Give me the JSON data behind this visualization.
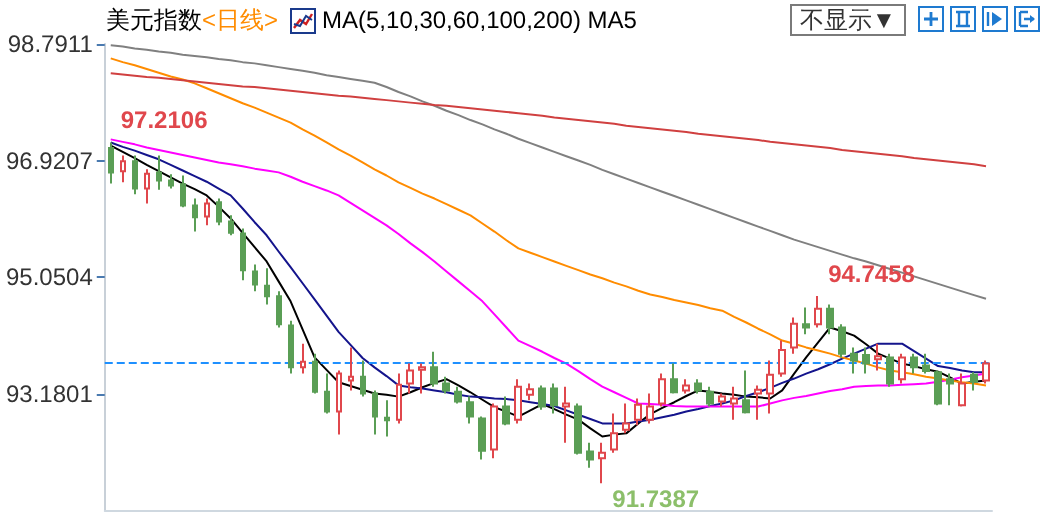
{
  "chart_data": {
    "type": "candlestick",
    "title": "美元指数",
    "subtitle": "<日线>",
    "annotations": [
      "MA(5,10,30,60,100,200) MA5",
      "不显示▼",
      "97.2106",
      "94.7458",
      "91.7387"
    ],
    "categories": [
      null,
      null,
      null,
      null,
      null,
      null,
      null,
      null,
      null,
      null,
      null,
      null,
      null,
      null,
      null,
      null,
      null,
      null,
      null,
      null,
      null,
      null,
      null,
      null,
      null,
      null,
      null,
      null,
      null,
      null,
      null,
      null,
      null,
      null,
      null,
      null,
      null,
      null,
      null,
      null,
      null,
      null,
      null,
      null,
      null,
      null,
      null,
      null,
      null,
      null,
      null,
      null,
      null,
      null,
      null,
      null,
      null,
      null,
      null,
      null,
      null,
      null,
      null,
      null,
      null,
      null,
      null,
      null,
      null,
      null,
      null,
      null,
      null,
      null
    ],
    "ylim": [
      91.3098,
      98.7911
    ],
    "yticks": [
      93.1801,
      95.0504,
      96.9207,
      98.7911
    ],
    "ref_lines": [
      {
        "axis": "y",
        "value": 93.68,
        "color": "#1e90ff",
        "line_style": "dashed"
      }
    ],
    "series": [
      {
        "colors": [
          "#5a9e55",
          "#e0474c",
          "#5a9e55",
          "#e0474c",
          "#5a9e55",
          "#5a9e55",
          "#5a9e55",
          "#5a9e55",
          "#e0474c",
          "#5a9e55",
          "#5a9e55",
          "#5a9e55",
          "#5a9e55",
          "#5a9e55",
          "#5a9e55",
          "#5a9e55",
          "#e0474c",
          "#5a9e55",
          "#5a9e55",
          "#e0474c",
          "#e0474c",
          "#5a9e55",
          "#5a9e55",
          "#5a9e55",
          "#e0474c",
          "#e0474c",
          "#e0474c",
          "#5a9e55",
          "#5a9e55",
          "#5a9e55",
          "#5a9e55",
          "#5a9e55",
          "#e0474c",
          "#5a9e55",
          "#e0474c",
          "#e0474c",
          "#5a9e55",
          "#5a9e55",
          "#e0474c",
          "#5a9e55",
          "#5a9e55",
          "#e0474c",
          "#e0474c",
          "#e0474c",
          "#e0474c",
          "#e0474c",
          "#e0474c",
          "#5a9e55",
          "#e0474c",
          "#5a9e55",
          "#5a9e55",
          "#e0474c",
          "#e0474c",
          "#5a9e55",
          "#e0474c",
          "#e0474c",
          "#e0474c",
          "#e0474c",
          "#5a9e55",
          "#e0474c",
          "#5a9e55",
          "#5a9e55",
          "#5a9e55",
          "#5a9e55",
          "#e0474c",
          "#5a9e55",
          "#e0474c",
          "#5a9e55",
          "#5a9e55",
          "#5a9e55",
          "#5a9e55",
          "#e0474c",
          "#5a9e55",
          "#e0474c"
        ],
        "ohlc": [
          [
            97.12,
            97.2106,
            96.55,
            96.73
          ],
          [
            96.75,
            97.0,
            96.57,
            96.91
          ],
          [
            96.91,
            97.0,
            96.38,
            96.47
          ],
          [
            96.47,
            96.78,
            96.23,
            96.71
          ],
          [
            96.73,
            97.0,
            96.45,
            96.6
          ],
          [
            96.6,
            96.7,
            96.47,
            96.52
          ],
          [
            96.54,
            96.68,
            96.17,
            96.2
          ],
          [
            96.2,
            96.31,
            95.78,
            96.01
          ],
          [
            96.02,
            96.31,
            95.88,
            96.23
          ],
          [
            96.25,
            96.31,
            95.88,
            95.94
          ],
          [
            95.94,
            96.04,
            95.72,
            95.76
          ],
          [
            95.75,
            95.83,
            95.0,
            95.16
          ],
          [
            95.14,
            95.25,
            94.82,
            94.93
          ],
          [
            94.91,
            95.19,
            94.61,
            94.74
          ],
          [
            94.74,
            94.82,
            94.24,
            94.29
          ],
          [
            94.27,
            94.35,
            93.5,
            93.6
          ],
          [
            93.6,
            93.98,
            93.5,
            93.69
          ],
          [
            93.69,
            93.82,
            93.18,
            93.21
          ],
          [
            93.21,
            93.5,
            92.86,
            92.89
          ],
          [
            92.89,
            93.55,
            92.52,
            93.5
          ],
          [
            93.39,
            93.92,
            93.23,
            93.45
          ],
          [
            93.45,
            93.71,
            93.13,
            93.18
          ],
          [
            93.18,
            93.23,
            92.52,
            92.81
          ],
          [
            92.79,
            93.07,
            92.49,
            92.75
          ],
          [
            92.76,
            93.5,
            92.7,
            93.32
          ],
          [
            93.34,
            93.66,
            93.18,
            93.55
          ],
          [
            93.56,
            93.66,
            93.18,
            93.6
          ],
          [
            93.6,
            93.85,
            93.29,
            93.34
          ],
          [
            93.34,
            93.45,
            93.18,
            93.23
          ],
          [
            93.21,
            93.29,
            93.02,
            93.05
          ],
          [
            93.04,
            93.13,
            92.7,
            92.81
          ],
          [
            92.78,
            92.81,
            92.12,
            92.26
          ],
          [
            92.28,
            93.02,
            92.14,
            92.97
          ],
          [
            92.97,
            93.13,
            92.67,
            92.7
          ],
          [
            92.76,
            93.41,
            92.7,
            93.29
          ],
          [
            93.16,
            93.34,
            93.07,
            93.25
          ],
          [
            93.26,
            93.31,
            92.92,
            92.97
          ],
          [
            93.26,
            93.34,
            92.86,
            92.99
          ],
          [
            92.97,
            93.29,
            92.39,
            93.02
          ],
          [
            92.97,
            93.02,
            92.2,
            92.23
          ],
          [
            92.25,
            92.39,
            91.99,
            92.12
          ],
          [
            92.14,
            92.39,
            91.7387,
            92.23
          ],
          [
            92.28,
            92.86,
            92.23,
            92.54
          ],
          [
            92.6,
            93.02,
            92.54,
            92.7
          ],
          [
            92.76,
            93.1,
            92.67,
            93.0
          ],
          [
            92.76,
            93.18,
            92.7,
            92.97
          ],
          [
            93.02,
            93.5,
            92.97,
            93.41
          ],
          [
            93.41,
            93.66,
            93.18,
            93.2
          ],
          [
            93.23,
            93.41,
            93.18,
            93.31
          ],
          [
            93.34,
            93.41,
            93.18,
            93.23
          ],
          [
            93.21,
            93.29,
            92.97,
            93.02
          ],
          [
            93.05,
            93.18,
            92.97,
            93.13
          ],
          [
            93.02,
            93.29,
            92.76,
            93.1
          ],
          [
            93.07,
            93.55,
            92.86,
            92.88
          ],
          [
            93.18,
            93.31,
            92.76,
            93.24
          ],
          [
            93.18,
            93.71,
            92.86,
            93.48
          ],
          [
            93.5,
            94.03,
            93.45,
            93.88
          ],
          [
            93.92,
            94.4,
            93.82,
            94.3
          ],
          [
            94.29,
            94.56,
            94.13,
            94.24
          ],
          [
            94.29,
            94.7458,
            94.24,
            94.54
          ],
          [
            94.54,
            94.61,
            94.13,
            94.24
          ],
          [
            94.24,
            94.29,
            93.76,
            93.82
          ],
          [
            93.82,
            93.92,
            93.5,
            93.71
          ],
          [
            93.8,
            93.92,
            93.5,
            93.66
          ],
          [
            93.73,
            93.98,
            93.55,
            93.78
          ],
          [
            93.76,
            93.82,
            93.29,
            93.34
          ],
          [
            93.41,
            93.82,
            93.34,
            93.76
          ],
          [
            93.76,
            93.82,
            93.5,
            93.6
          ],
          [
            93.63,
            93.82,
            93.5,
            93.54
          ],
          [
            93.52,
            93.55,
            92.99,
            93.02
          ],
          [
            93.41,
            93.5,
            92.99,
            93.34
          ],
          [
            92.99,
            93.5,
            92.97,
            93.34
          ],
          [
            93.48,
            93.52,
            93.23,
            93.37
          ],
          [
            93.39,
            93.71,
            93.34,
            93.66
          ]
        ]
      },
      {
        "type": "line",
        "color": "#000000",
        "values": [
          97.16,
          97.06,
          96.96,
          96.85,
          96.75,
          96.65,
          96.55,
          96.46,
          96.36,
          96.18,
          95.99,
          95.76,
          95.53,
          95.3,
          94.98,
          94.66,
          94.21,
          93.76,
          93.56,
          93.36,
          93.3,
          93.24,
          93.18,
          93.16,
          93.13,
          93.2,
          93.28,
          93.35,
          93.41,
          93.31,
          93.2,
          93.08,
          92.96,
          92.89,
          92.81,
          92.91,
          93.01,
          92.93,
          92.84,
          92.76,
          92.62,
          92.49,
          92.52,
          92.54,
          92.7,
          92.85,
          92.95,
          93.04,
          93.14,
          93.23,
          93.21,
          93.18,
          93.16,
          93.13,
          93.12,
          93.1,
          93.23,
          93.5,
          93.76,
          94.0,
          94.24,
          94.18,
          94.11,
          93.97,
          93.82,
          93.74,
          93.66,
          93.62,
          93.57,
          93.53,
          93.44,
          93.34,
          93.37,
          93.39
        ]
      },
      {
        "type": "line",
        "color": "#14148c",
        "values": [
          97.21,
          97.14,
          97.08,
          97.01,
          96.94,
          96.85,
          96.76,
          96.67,
          96.58,
          96.47,
          96.36,
          96.15,
          95.93,
          95.72,
          95.46,
          95.21,
          94.95,
          94.69,
          94.43,
          94.17,
          93.96,
          93.75,
          93.6,
          93.46,
          93.31,
          93.28,
          93.26,
          93.23,
          93.2,
          93.16,
          93.13,
          93.12,
          93.1,
          93.09,
          93.07,
          93.04,
          93.01,
          92.98,
          92.91,
          92.84,
          92.77,
          92.7,
          92.7,
          92.7,
          92.73,
          92.76,
          92.8,
          92.84,
          92.89,
          92.93,
          92.98,
          93.02,
          93.07,
          93.14,
          93.2,
          93.27,
          93.35,
          93.42,
          93.5,
          93.57,
          93.65,
          93.74,
          93.82,
          93.9,
          93.98,
          93.98,
          93.98,
          93.86,
          93.74,
          93.62,
          93.59,
          93.55,
          93.52,
          93.52
        ]
      },
      {
        "type": "line",
        "color": "#ff00ff",
        "values": [
          97.26,
          97.22,
          97.18,
          97.13,
          97.09,
          97.05,
          97.01,
          96.97,
          96.93,
          96.89,
          96.86,
          96.83,
          96.79,
          96.76,
          96.73,
          96.66,
          96.58,
          96.51,
          96.44,
          96.36,
          96.24,
          96.12,
          96.0,
          95.88,
          95.74,
          95.59,
          95.45,
          95.3,
          95.14,
          94.98,
          94.82,
          94.66,
          94.45,
          94.24,
          94.03,
          93.94,
          93.85,
          93.75,
          93.66,
          93.54,
          93.41,
          93.29,
          93.2,
          93.11,
          93.02,
          93.01,
          93.0,
          92.98,
          92.97,
          92.97,
          92.97,
          92.97,
          92.97,
          92.97,
          92.97,
          93.02,
          93.07,
          93.11,
          93.14,
          93.18,
          93.22,
          93.25,
          93.29,
          93.3,
          93.31,
          93.31,
          93.32,
          93.33,
          93.34,
          93.37,
          93.4,
          93.44,
          93.47,
          93.5
        ]
      },
      {
        "type": "line",
        "color": "#ff8c00",
        "values": [
          98.56,
          98.5,
          98.45,
          98.39,
          98.33,
          98.27,
          98.22,
          98.16,
          98.08,
          98.0,
          97.92,
          97.84,
          97.77,
          97.69,
          97.61,
          97.53,
          97.42,
          97.32,
          97.21,
          97.1,
          97.0,
          96.89,
          96.78,
          96.68,
          96.57,
          96.48,
          96.39,
          96.31,
          96.22,
          96.13,
          96.04,
          95.91,
          95.78,
          95.64,
          95.51,
          95.44,
          95.37,
          95.3,
          95.23,
          95.16,
          95.09,
          95.03,
          94.96,
          94.9,
          94.83,
          94.77,
          94.73,
          94.68,
          94.64,
          94.6,
          94.55,
          94.51,
          94.41,
          94.32,
          94.22,
          94.13,
          94.03,
          93.98,
          93.92,
          93.87,
          93.82,
          93.76,
          93.71,
          93.66,
          93.6,
          93.55,
          93.52,
          93.49,
          93.45,
          93.42,
          93.39,
          93.36,
          93.34,
          93.31
        ]
      },
      {
        "type": "line",
        "color": "#808080",
        "values": [
          98.77,
          98.75,
          98.72,
          98.7,
          98.67,
          98.65,
          98.62,
          98.6,
          98.58,
          98.55,
          98.53,
          98.5,
          98.48,
          98.45,
          98.42,
          98.39,
          98.36,
          98.33,
          98.29,
          98.26,
          98.23,
          98.2,
          98.17,
          98.1,
          98.02,
          97.95,
          97.87,
          97.8,
          97.72,
          97.65,
          97.57,
          97.5,
          97.42,
          97.35,
          97.27,
          97.2,
          97.13,
          97.06,
          96.99,
          96.92,
          96.85,
          96.77,
          96.7,
          96.63,
          96.56,
          96.49,
          96.42,
          96.35,
          96.28,
          96.21,
          96.14,
          96.07,
          96.0,
          95.93,
          95.86,
          95.79,
          95.72,
          95.65,
          95.59,
          95.53,
          95.47,
          95.41,
          95.35,
          95.3,
          95.24,
          95.18,
          95.12,
          95.06,
          95.0,
          94.94,
          94.88,
          94.82,
          94.76,
          94.7
        ]
      },
      {
        "type": "line",
        "color": "#d04040",
        "values": [
          98.32,
          98.3,
          98.28,
          98.26,
          98.25,
          98.23,
          98.21,
          98.19,
          98.17,
          98.15,
          98.13,
          98.11,
          98.1,
          98.08,
          98.06,
          98.04,
          98.02,
          98.0,
          97.98,
          97.96,
          97.95,
          97.93,
          97.91,
          97.89,
          97.87,
          97.85,
          97.83,
          97.81,
          97.8,
          97.78,
          97.76,
          97.74,
          97.72,
          97.7,
          97.68,
          97.66,
          97.64,
          97.61,
          97.59,
          97.57,
          97.55,
          97.53,
          97.51,
          97.48,
          97.46,
          97.44,
          97.42,
          97.4,
          97.38,
          97.35,
          97.33,
          97.31,
          97.29,
          97.27,
          97.25,
          97.22,
          97.2,
          97.18,
          97.16,
          97.14,
          97.12,
          97.09,
          97.07,
          97.05,
          97.03,
          97.01,
          96.99,
          96.96,
          96.94,
          96.92,
          96.9,
          96.88,
          96.86,
          96.83
        ]
      }
    ],
    "tick_labels": "y"
  }
}
